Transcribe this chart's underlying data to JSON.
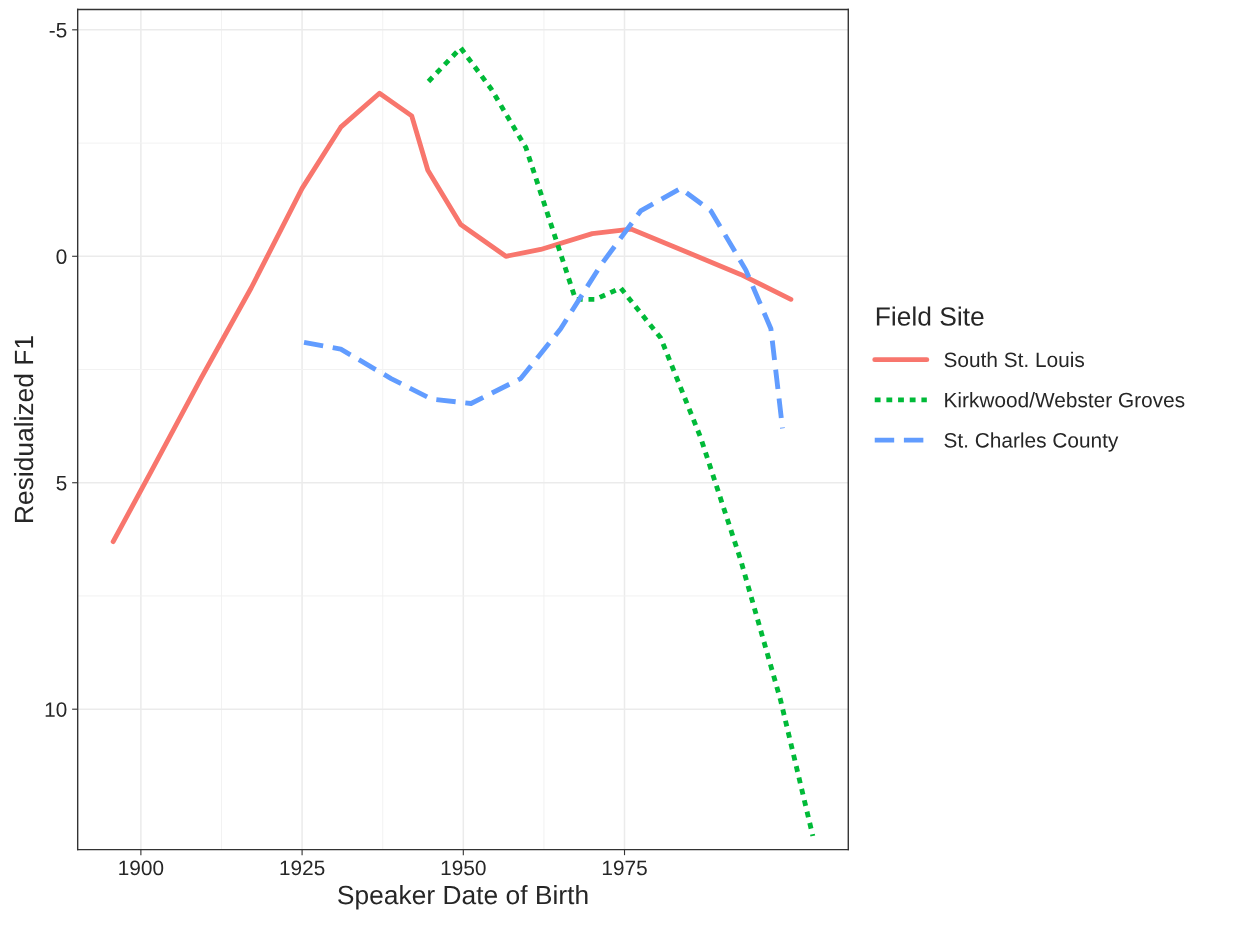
{
  "chart_data": {
    "type": "line",
    "xlabel": "Speaker Date of Birth",
    "ylabel": "Residualized F1",
    "legend_title": "Field Site",
    "xlim": [
      1890.2,
      2009.7
    ],
    "xticks": [
      1900,
      1925,
      1950,
      1975
    ],
    "ylim": [
      13.1,
      -5.45
    ],
    "yticks": [
      -5,
      0,
      5,
      10
    ],
    "grid": true,
    "legend": "right",
    "series": [
      {
        "name": "South St. Louis",
        "color": "#f8766d",
        "line_style": "solid",
        "x": [
          1895.7,
          1901.6,
          1909.3,
          1917.1,
          1925,
          1931,
          1937,
          1942,
          1944.5,
          1949.6,
          1956.6,
          1962,
          1970,
          1976,
          1983.7,
          1993,
          2000.8
        ],
        "values": [
          6.3,
          4.75,
          2.7,
          0.7,
          -1.5,
          -2.85,
          -3.6,
          -3.1,
          -1.9,
          -0.7,
          0,
          -0.15,
          -0.5,
          -0.6,
          -0.15,
          0.4,
          0.95
        ]
      },
      {
        "name": "Kirkwood/Webster Groves",
        "color": "#00ba38",
        "line_style": "dotted",
        "x": [
          1944.6,
          1949.6,
          1954.3,
          1959.7,
          1964.3,
          1967.4,
          1970.5,
          1974.4,
          1980.6,
          1986.8,
          1993,
          1999.2,
          2004.2
        ],
        "values": [
          -3.86,
          -4.6,
          -3.7,
          -2.4,
          -0.4,
          0.95,
          0.95,
          0.7,
          1.8,
          4.0,
          6.7,
          9.8,
          12.8
        ]
      },
      {
        "name": "St. Charles County",
        "color": "#619cff",
        "line_style": "dashed",
        "x": [
          1925.3,
          1931,
          1938.8,
          1945,
          1951.2,
          1958.9,
          1965.1,
          1971.3,
          1977.5,
          1983.7,
          1988.4,
          1993.8,
          1997.7,
          1999.5
        ],
        "values": [
          1.9,
          2.05,
          2.7,
          3.15,
          3.25,
          2.7,
          1.6,
          0.2,
          -1.0,
          -1.5,
          -1.0,
          0.3,
          1.6,
          3.8
        ]
      }
    ]
  }
}
